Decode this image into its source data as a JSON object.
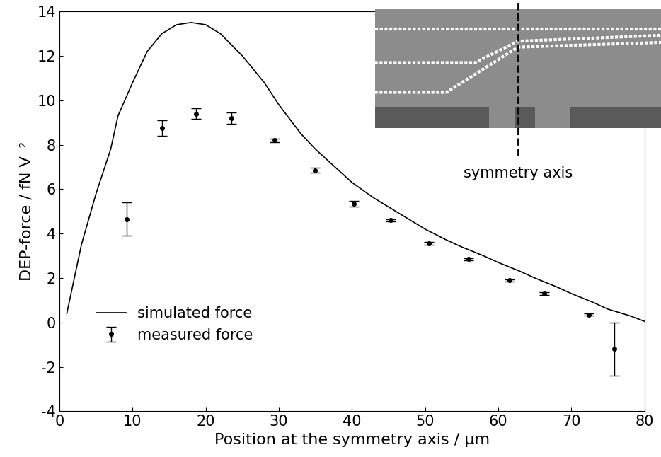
{
  "chart_data": {
    "type": "line",
    "x_label": "Position at the symmetry axis / µm",
    "y_label": "DEP-force / fN V⁻²",
    "annotation": "symmetry axis",
    "xlim": [
      0,
      80
    ],
    "xticks": [
      0,
      10,
      20,
      30,
      40,
      50,
      60,
      70,
      80
    ],
    "ylim": [
      -4,
      14
    ],
    "yticks": [
      -4,
      -2,
      0,
      2,
      4,
      6,
      8,
      10,
      12,
      14
    ],
    "grid": false,
    "legend": "lower left",
    "series": [
      {
        "name": "simulated force",
        "type": "line",
        "color": "#000000",
        "line_style": "solid",
        "x": [
          1,
          3,
          5,
          7,
          8,
          10,
          12,
          14,
          16,
          18,
          20,
          22,
          25,
          28,
          30,
          33,
          35,
          38,
          40,
          43,
          45,
          48,
          50,
          53,
          55,
          58,
          60,
          63,
          65,
          68,
          70,
          73,
          75,
          78,
          80
        ],
        "values": [
          0.4,
          3.5,
          5.8,
          7.8,
          9.3,
          10.8,
          12.2,
          13.0,
          13.4,
          13.5,
          13.4,
          13.0,
          12.0,
          10.8,
          9.8,
          8.5,
          7.8,
          6.9,
          6.3,
          5.6,
          5.2,
          4.6,
          4.2,
          3.7,
          3.4,
          3.0,
          2.7,
          2.3,
          2.0,
          1.6,
          1.3,
          0.9,
          0.6,
          0.3,
          0.05
        ]
      },
      {
        "name": "measured force",
        "type": "scatter",
        "color": "#000000",
        "marker": "dot",
        "x": [
          9.2,
          14,
          18.7,
          23.5,
          29.4,
          34.9,
          40.3,
          45.3,
          50.5,
          55.9,
          61.5,
          66.3,
          72.4,
          75.9
        ],
        "values": [
          4.65,
          8.75,
          9.4,
          9.2,
          8.2,
          6.85,
          5.35,
          4.6,
          3.55,
          2.85,
          1.9,
          1.3,
          0.35,
          -1.2
        ],
        "error": [
          0.75,
          0.35,
          0.25,
          0.25,
          0.08,
          0.12,
          0.12,
          0.05,
          0.06,
          0.05,
          0.05,
          0.06,
          0.05,
          1.2
        ]
      }
    ]
  }
}
